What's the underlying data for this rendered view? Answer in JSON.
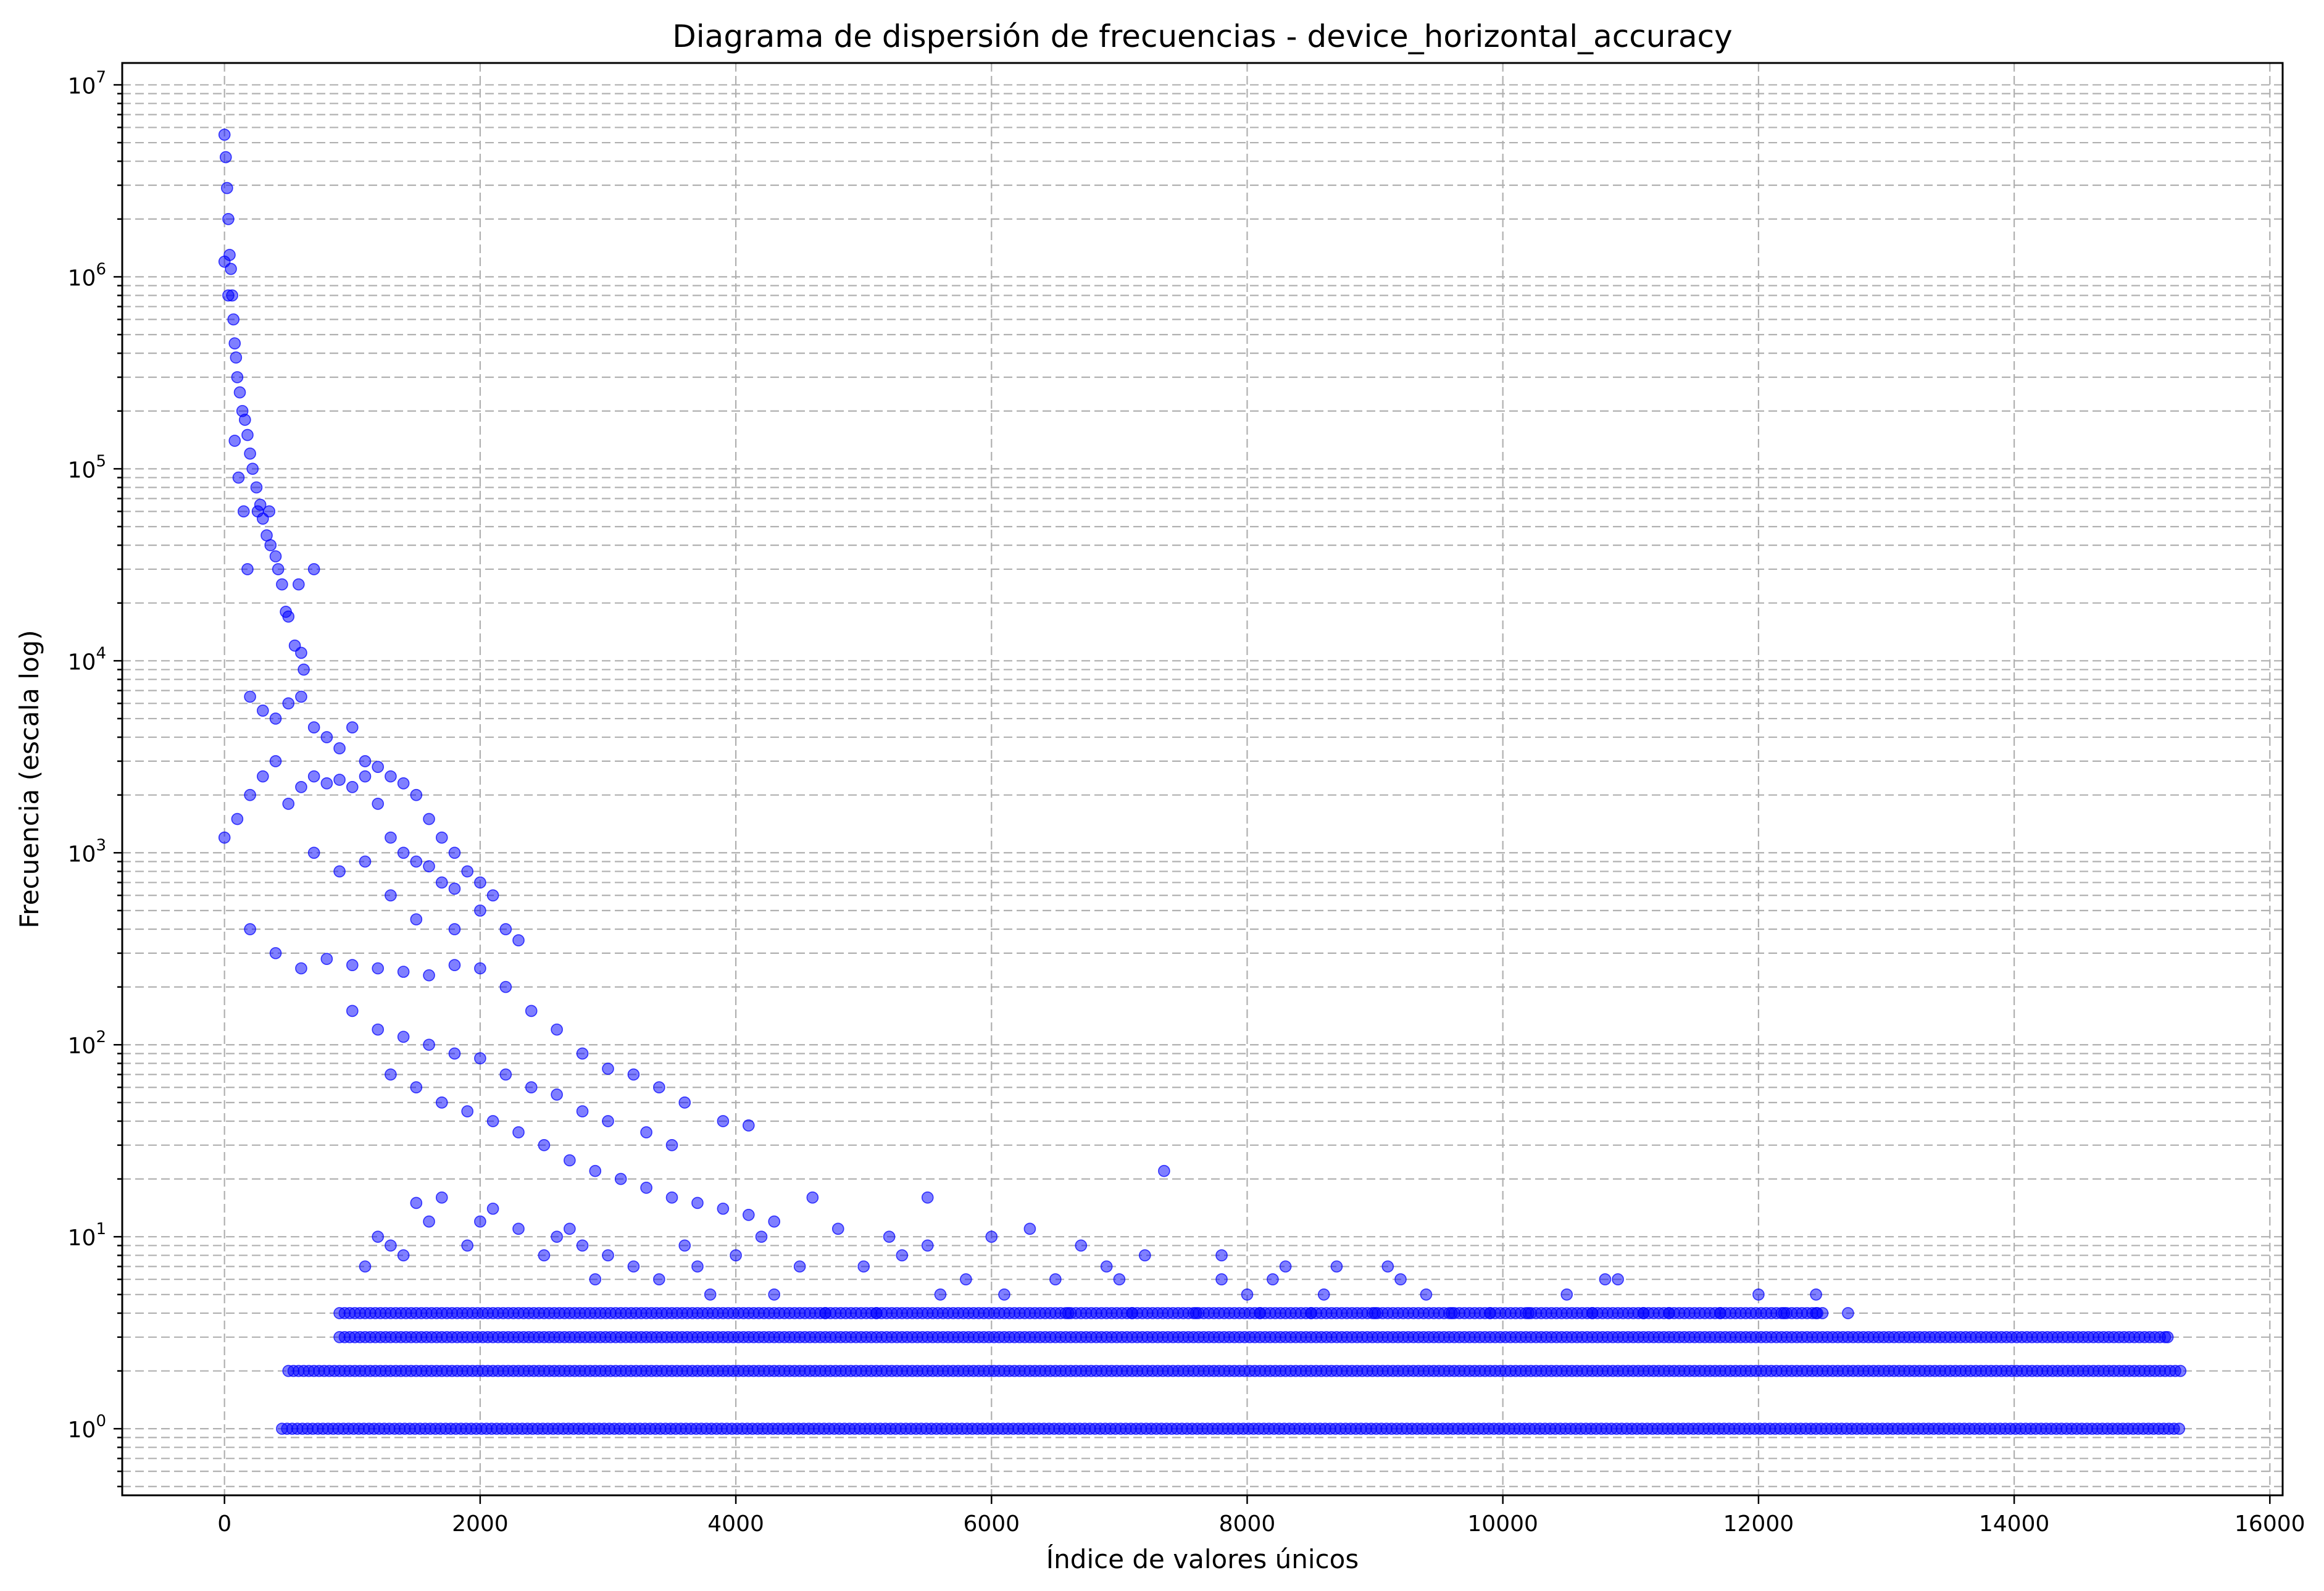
{
  "chart_data": {
    "type": "scatter",
    "title": "Diagrama de dispersión de frecuencias - device_horizontal_accuracy",
    "xlabel": "Índice de valores únicos",
    "ylabel": "Frecuencia (escala log)",
    "xlim": [
      -800,
      16100
    ],
    "ylim": [
      0.45,
      13000000
    ],
    "yscale": "log",
    "grid": true,
    "x_ticks": [
      "0",
      "2000",
      "4000",
      "6000",
      "8000",
      "10000",
      "12000",
      "14000",
      "16000"
    ],
    "x_tick_values": [
      0,
      2000,
      4000,
      6000,
      8000,
      10000,
      12000,
      14000,
      16000
    ],
    "y_ticks": [
      "10^0",
      "10^1",
      "10^2",
      "10^3",
      "10^4",
      "10^5",
      "10^6",
      "10^7"
    ],
    "y_tick_exponents": [
      0,
      1,
      2,
      3,
      4,
      5,
      6,
      7
    ],
    "series": [
      {
        "color": "#0000ff",
        "points": [
          [
            0,
            5500000
          ],
          [
            10,
            4200000
          ],
          [
            20,
            2900000
          ],
          [
            30,
            2000000
          ],
          [
            40,
            1300000
          ],
          [
            50,
            1100000
          ],
          [
            60,
            800000
          ],
          [
            70,
            600000
          ],
          [
            80,
            450000
          ],
          [
            90,
            380000
          ],
          [
            100,
            300000
          ],
          [
            120,
            250000
          ],
          [
            140,
            200000
          ],
          [
            160,
            180000
          ],
          [
            180,
            150000
          ],
          [
            200,
            120000
          ],
          [
            220,
            100000
          ],
          [
            250,
            80000
          ],
          [
            280,
            65000
          ],
          [
            300,
            55000
          ],
          [
            330,
            45000
          ],
          [
            360,
            40000
          ],
          [
            400,
            35000
          ],
          [
            420,
            30000
          ],
          [
            450,
            25000
          ],
          [
            480,
            18000
          ],
          [
            500,
            17000
          ],
          [
            550,
            12000
          ],
          [
            600,
            11000
          ],
          [
            620,
            9000
          ],
          [
            80,
            140000
          ],
          [
            150,
            60000
          ],
          [
            260,
            60000
          ],
          [
            350,
            60000
          ],
          [
            180,
            30000
          ],
          [
            700,
            30000
          ],
          [
            580,
            25000
          ],
          [
            0,
            1200000
          ],
          [
            30,
            800000
          ],
          [
            110,
            90000
          ],
          [
            200,
            6500
          ],
          [
            300,
            5500
          ],
          [
            400,
            5000
          ],
          [
            500,
            6000
          ],
          [
            600,
            6500
          ],
          [
            700,
            4500
          ],
          [
            800,
            4000
          ],
          [
            900,
            3500
          ],
          [
            1000,
            4500
          ],
          [
            1100,
            3000
          ],
          [
            1200,
            2800
          ],
          [
            1300,
            2500
          ],
          [
            1400,
            2300
          ],
          [
            1500,
            2000
          ],
          [
            1600,
            1500
          ],
          [
            1700,
            1200
          ],
          [
            1800,
            1000
          ],
          [
            1900,
            800
          ],
          [
            2000,
            700
          ],
          [
            2100,
            600
          ],
          [
            2200,
            400
          ],
          [
            2300,
            350
          ],
          [
            0,
            1200
          ],
          [
            100,
            1500
          ],
          [
            200,
            2000
          ],
          [
            300,
            2500
          ],
          [
            400,
            3000
          ],
          [
            500,
            1800
          ],
          [
            600,
            2200
          ],
          [
            700,
            2500
          ],
          [
            800,
            2300
          ],
          [
            900,
            2400
          ],
          [
            1000,
            2200
          ],
          [
            1100,
            2500
          ],
          [
            1200,
            1800
          ],
          [
            1300,
            1200
          ],
          [
            1400,
            1000
          ],
          [
            1500,
            900
          ],
          [
            1600,
            850
          ],
          [
            1700,
            700
          ],
          [
            1800,
            650
          ],
          [
            2000,
            500
          ],
          [
            700,
            1000
          ],
          [
            900,
            800
          ],
          [
            1100,
            900
          ],
          [
            1300,
            600
          ],
          [
            1500,
            450
          ],
          [
            1800,
            400
          ],
          [
            200,
            400
          ],
          [
            400,
            300
          ],
          [
            600,
            250
          ],
          [
            800,
            280
          ],
          [
            1000,
            260
          ],
          [
            1200,
            250
          ],
          [
            1400,
            240
          ],
          [
            1600,
            230
          ],
          [
            1800,
            260
          ],
          [
            2000,
            250
          ],
          [
            2200,
            200
          ],
          [
            2400,
            150
          ],
          [
            2600,
            120
          ],
          [
            2800,
            90
          ],
          [
            3000,
            75
          ],
          [
            3200,
            70
          ],
          [
            3400,
            60
          ],
          [
            3600,
            50
          ],
          [
            3900,
            40
          ],
          [
            4100,
            38
          ],
          [
            1000,
            150
          ],
          [
            1200,
            120
          ],
          [
            1400,
            110
          ],
          [
            1600,
            100
          ],
          [
            1800,
            90
          ],
          [
            2000,
            85
          ],
          [
            2200,
            70
          ],
          [
            2400,
            60
          ],
          [
            2600,
            55
          ],
          [
            2800,
            45
          ],
          [
            3000,
            40
          ],
          [
            3300,
            35
          ],
          [
            3500,
            30
          ],
          [
            1300,
            70
          ],
          [
            1500,
            60
          ],
          [
            1700,
            50
          ],
          [
            1900,
            45
          ],
          [
            2100,
            40
          ],
          [
            2300,
            35
          ],
          [
            2500,
            30
          ],
          [
            2700,
            25
          ],
          [
            2900,
            22
          ],
          [
            3100,
            20
          ],
          [
            3300,
            18
          ],
          [
            3500,
            16
          ],
          [
            3700,
            15
          ],
          [
            3900,
            14
          ],
          [
            4100,
            13
          ],
          [
            4300,
            12
          ],
          [
            4600,
            16
          ],
          [
            5500,
            16
          ],
          [
            7350,
            22
          ],
          [
            4800,
            11
          ],
          [
            5200,
            10
          ],
          [
            5500,
            9
          ],
          [
            6000,
            10
          ],
          [
            6300,
            11
          ],
          [
            6700,
            9
          ],
          [
            7200,
            8
          ],
          [
            7800,
            8
          ],
          [
            8300,
            7
          ],
          [
            8700,
            7
          ],
          [
            9100,
            7
          ],
          [
            10800,
            6
          ],
          [
            10900,
            6
          ],
          [
            1200,
            10
          ],
          [
            1500,
            15
          ],
          [
            1700,
            16
          ],
          [
            2000,
            12
          ],
          [
            2300,
            11
          ],
          [
            2600,
            10
          ],
          [
            2800,
            9
          ],
          [
            3000,
            8
          ],
          [
            3200,
            7
          ],
          [
            3600,
            9
          ],
          [
            4000,
            8
          ],
          [
            4500,
            7
          ],
          [
            5000,
            7
          ],
          [
            5800,
            6
          ],
          [
            6500,
            6
          ],
          [
            7000,
            6
          ],
          [
            8000,
            5
          ],
          [
            8600,
            5
          ],
          [
            9400,
            5
          ],
          [
            10500,
            5
          ],
          [
            12000,
            5
          ],
          [
            12450,
            5
          ],
          [
            12450,
            4
          ],
          [
            12700,
            4
          ],
          [
            11300,
            4
          ],
          [
            9900,
            4
          ],
          [
            15200,
            3
          ],
          [
            1100,
            7
          ],
          [
            1400,
            8
          ],
          [
            1900,
            9
          ],
          [
            2500,
            8
          ],
          [
            2900,
            6
          ],
          [
            3400,
            6
          ],
          [
            3800,
            5
          ],
          [
            4300,
            5
          ],
          [
            4700,
            4
          ],
          [
            5100,
            4
          ],
          [
            5600,
            5
          ],
          [
            6100,
            5
          ],
          [
            6600,
            4
          ],
          [
            7100,
            4
          ],
          [
            7600,
            4
          ],
          [
            8100,
            4
          ],
          [
            8500,
            4
          ],
          [
            9000,
            4
          ],
          [
            9600,
            4
          ],
          [
            10200,
            4
          ],
          [
            10700,
            4
          ],
          [
            11100,
            4
          ],
          [
            11700,
            4
          ],
          [
            12200,
            4
          ],
          [
            1300,
            9
          ],
          [
            1600,
            12
          ],
          [
            2100,
            14
          ],
          [
            2700,
            11
          ],
          [
            3700,
            7
          ],
          [
            4200,
            10
          ],
          [
            5300,
            8
          ],
          [
            6900,
            7
          ],
          [
            7800,
            6
          ],
          [
            8200,
            6
          ],
          [
            9200,
            6
          ]
        ],
        "bands": [
          {
            "y": 1,
            "x_start": 450,
            "x_end": 15300
          },
          {
            "y": 2,
            "x_start": 500,
            "x_end": 15300
          },
          {
            "y": 3,
            "x_start": 900,
            "x_end": 15200
          },
          {
            "y": 4,
            "x_start": 900,
            "x_end": 12500
          }
        ]
      }
    ]
  }
}
